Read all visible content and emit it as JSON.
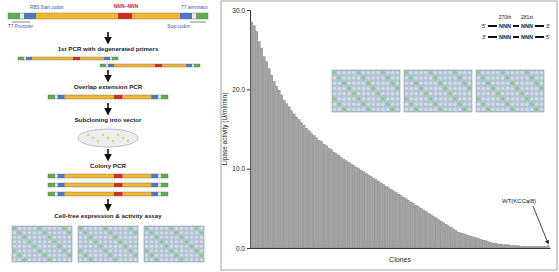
{
  "chart_data": {
    "type": "bar",
    "categories": [
      null,
      null,
      null,
      null,
      null,
      null,
      null,
      null,
      null,
      null,
      null,
      null,
      null,
      null,
      null,
      null,
      null,
      null,
      null,
      null,
      null,
      null,
      null,
      null,
      null,
      null,
      null,
      null,
      null,
      null,
      null,
      null,
      null,
      null,
      null,
      null,
      null,
      null,
      null,
      null,
      null,
      null,
      null,
      null,
      null,
      null,
      null,
      null,
      null,
      null,
      null,
      null,
      null,
      null,
      null,
      null,
      null,
      null,
      null,
      null,
      null,
      null,
      null,
      null,
      null,
      null,
      null,
      null,
      null,
      null,
      null,
      null,
      null,
      null,
      null,
      null,
      null,
      null,
      null,
      null,
      null,
      null,
      null,
      null,
      null,
      null,
      null,
      null,
      null,
      null,
      null,
      null,
      null,
      null,
      null,
      null,
      null,
      null,
      null,
      null,
      null,
      null,
      null,
      null,
      null,
      null,
      null,
      null,
      null,
      null,
      null,
      null,
      null,
      null,
      null,
      null,
      null,
      null,
      null,
      null
    ],
    "values": [
      28.5,
      28.0,
      27.3,
      26.0,
      25.2,
      24.1,
      23.5,
      22.6,
      21.8,
      21.0,
      20.4,
      19.9,
      19.3,
      18.6,
      18.2,
      17.8,
      17.3,
      16.9,
      16.5,
      16.2,
      15.8,
      15.5,
      15.1,
      14.8,
      14.5,
      14.2,
      13.9,
      13.6,
      13.4,
      13.1,
      12.9,
      12.6,
      12.4,
      12.1,
      11.9,
      11.7,
      11.4,
      11.2,
      11.0,
      10.8,
      10.6,
      10.4,
      10.2,
      10.0,
      9.8,
      9.6,
      9.4,
      9.2,
      9.0,
      8.8,
      8.6,
      8.4,
      8.2,
      8.0,
      7.8,
      7.6,
      7.4,
      7.2,
      7.0,
      6.8,
      6.6,
      6.4,
      6.2,
      6.0,
      5.8,
      5.6,
      5.4,
      5.2,
      5.0,
      4.8,
      4.6,
      4.4,
      4.2,
      4.0,
      3.8,
      3.6,
      3.4,
      3.2,
      3.0,
      2.8,
      2.6,
      2.4,
      2.2,
      2.0,
      1.9,
      1.8,
      1.7,
      1.6,
      1.5,
      1.4,
      1.3,
      1.2,
      1.1,
      1.0,
      0.9,
      0.8,
      0.7,
      0.6,
      0.6,
      0.5,
      0.5,
      0.4,
      0.4,
      0.4,
      0.3,
      0.3,
      0.3,
      0.3,
      0.2,
      0.2,
      0.2,
      0.2,
      0.2,
      0.2,
      0.2,
      0.2,
      0.2,
      0.2,
      0.2,
      0.3
    ],
    "color": "#a6a6a6",
    "ylim": [
      0,
      30
    ],
    "yticks": [
      {
        "value": 0,
        "label": "0.0"
      },
      {
        "value": 10,
        "label": "10.0"
      },
      {
        "value": 20,
        "label": "20.0"
      },
      {
        "value": 30,
        "label": "30.0"
      }
    ],
    "y_label": "Lipase activity (U/ml/min)",
    "x_label": "Clones",
    "annotation": "WT(KCCal8)",
    "tick_labels": "y"
  },
  "flowchart": {
    "construct_labels": [
      "RBS Start codon",
      "T7 terminator",
      "T7 Promoter",
      "Stop codon"
    ],
    "mutation": "NNN~NNN",
    "steps": [
      "1st PCR with degenerated primers",
      "Overlap extension PCR",
      "Subcloning into vector",
      "Colony PCR",
      "Cell-free expression & activity assay"
    ]
  },
  "inset": {
    "positions": [
      "270th",
      "281st"
    ],
    "ends": [
      "5'",
      "3'",
      "3'",
      "5'"
    ],
    "codon": "NNN"
  }
}
